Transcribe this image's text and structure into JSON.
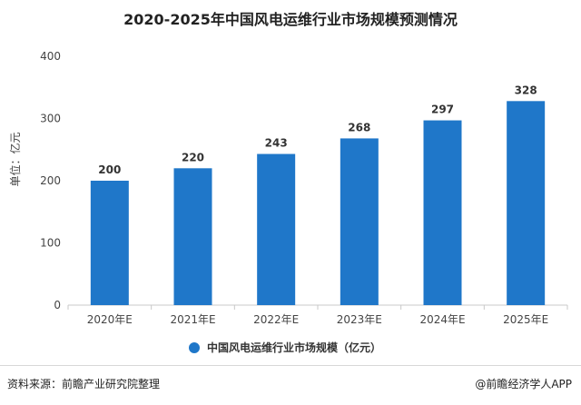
{
  "page": {
    "source": "资料来源：前瞻产业研究院整理",
    "credit": "@前瞻经济学人APP"
  },
  "colors": {
    "bar": "#1f77c9",
    "axis": "#c8c8c8",
    "tick_text": "#444444"
  },
  "chart_data": {
    "type": "bar",
    "title": "2020-2025年中国风电运维行业市场规模预测情况",
    "ylabel": "单位：亿元",
    "xlabel": "",
    "categories": [
      "2020年E",
      "2021年E",
      "2022年E",
      "2023年E",
      "2024年E",
      "2025年E"
    ],
    "series": [
      {
        "name": "中国风电运维行业市场规模（亿元）",
        "values": [
          200,
          220,
          243,
          268,
          297,
          328
        ]
      }
    ],
    "ylim": [
      0,
      400
    ],
    "yticks": [
      0,
      100,
      200,
      300,
      400
    ],
    "grid": false,
    "legend_position": "bottom",
    "data_labels": true
  }
}
